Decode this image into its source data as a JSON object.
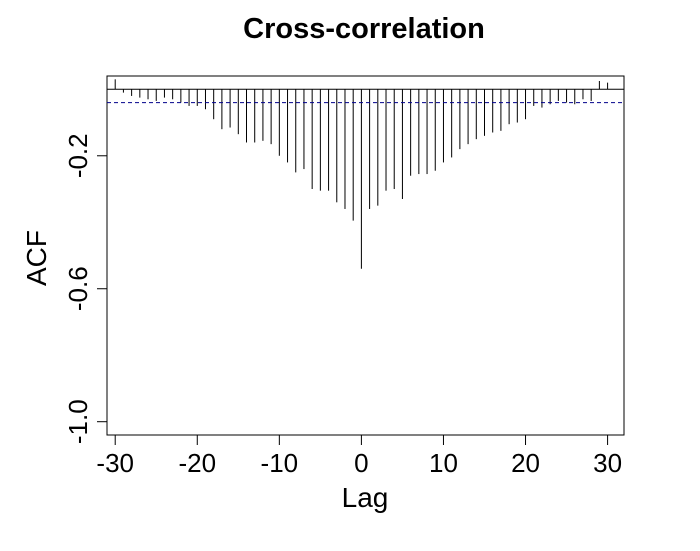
{
  "chart_data": {
    "type": "bar",
    "title": "Cross-correlation",
    "xlabel": "Lag",
    "ylabel": "ACF",
    "xlim": [
      -31,
      32
    ],
    "ylim": [
      -1.04,
      0.04
    ],
    "xticks": [
      -30,
      -20,
      -10,
      0,
      10,
      20,
      30
    ],
    "xtick_labels": [
      "-30",
      "-20",
      "-10",
      "0",
      "10",
      "20",
      "30"
    ],
    "yticks": [
      -1.0,
      -0.6,
      -0.2
    ],
    "ytick_labels": [
      "-1.0",
      "-0.6",
      "-0.2"
    ],
    "confidence_line": -0.04,
    "confidence_color": "#00008b",
    "grid": false,
    "x": [
      -30,
      -29,
      -28,
      -27,
      -26,
      -25,
      -24,
      -23,
      -22,
      -21,
      -20,
      -19,
      -18,
      -17,
      -16,
      -15,
      -14,
      -13,
      -12,
      -11,
      -10,
      -9,
      -8,
      -7,
      -6,
      -5,
      -4,
      -3,
      -2,
      -1,
      0,
      1,
      2,
      3,
      4,
      5,
      6,
      7,
      8,
      9,
      10,
      11,
      12,
      13,
      14,
      15,
      16,
      17,
      18,
      19,
      20,
      21,
      22,
      23,
      24,
      25,
      26,
      27,
      28,
      29,
      30
    ],
    "values": [
      0.03,
      -0.01,
      -0.02,
      -0.025,
      -0.03,
      -0.035,
      -0.025,
      -0.03,
      -0.04,
      -0.05,
      -0.05,
      -0.06,
      -0.09,
      -0.12,
      -0.115,
      -0.135,
      -0.16,
      -0.16,
      -0.155,
      -0.165,
      -0.2,
      -0.22,
      -0.25,
      -0.24,
      -0.3,
      -0.305,
      -0.305,
      -0.34,
      -0.36,
      -0.395,
      -0.54,
      -0.36,
      -0.35,
      -0.305,
      -0.3,
      -0.33,
      -0.26,
      -0.255,
      -0.255,
      -0.245,
      -0.22,
      -0.205,
      -0.18,
      -0.165,
      -0.15,
      -0.14,
      -0.13,
      -0.125,
      -0.105,
      -0.1,
      -0.09,
      -0.05,
      -0.055,
      -0.045,
      -0.035,
      -0.04,
      -0.045,
      -0.03,
      -0.035,
      0.025,
      0.02
    ]
  }
}
